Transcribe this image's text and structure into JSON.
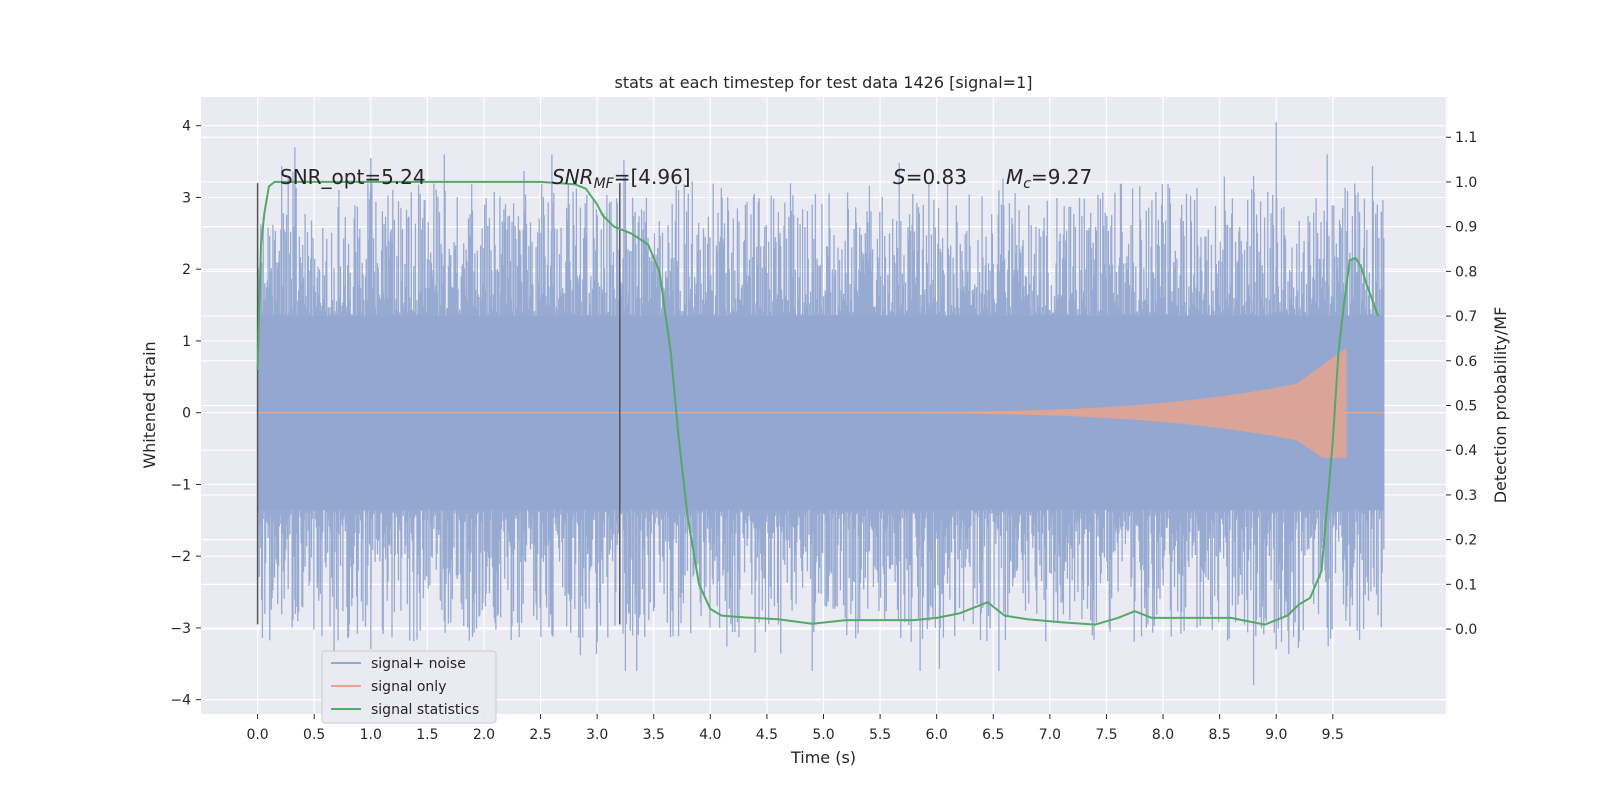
{
  "chart_data": {
    "type": "line",
    "title": "stats at each timestep for test data 1426 [signal=1]",
    "xlabel": "Time (s)",
    "ylabel": "Whitened strain",
    "y2label": "Detection probability/MF",
    "xlim": [
      -0.5,
      10.5
    ],
    "ylim": [
      -4.2,
      4.4
    ],
    "y2lim": [
      -0.19,
      1.19
    ],
    "x_ticks": [
      "0.0",
      "0.5",
      "1.0",
      "1.5",
      "2.0",
      "2.5",
      "3.0",
      "3.5",
      "4.0",
      "4.5",
      "5.0",
      "5.5",
      "6.0",
      "6.5",
      "7.0",
      "7.5",
      "8.0",
      "8.5",
      "9.0",
      "9.5"
    ],
    "y_ticks": [
      "4",
      "3",
      "2",
      "1",
      "0",
      "−1",
      "−2",
      "−3",
      "−4"
    ],
    "y2_ticks": [
      "1.1",
      "1.0",
      "0.9",
      "0.8",
      "0.7",
      "0.6",
      "0.5",
      "0.4",
      "0.3",
      "0.2",
      "0.1",
      "0.0"
    ],
    "grid": true,
    "legend_position": "lower-left",
    "annotations": {
      "snr_opt": "SNR_opt=5.24",
      "snr_mf_main": "SNR",
      "snr_mf_sub": "MF",
      "snr_mf_value": "=[4.96]",
      "s_var": "S",
      "s_value": "=0.83",
      "mc_var": "M",
      "mc_sub": "c",
      "mc_value": "=9.27"
    },
    "vertical_markers": [
      0.0,
      3.2
    ],
    "series": [
      {
        "name": "signal+ noise",
        "color": "#92a6d0",
        "envelope": {
          "core": 1.35,
          "typical_peak": 2.4,
          "max_peak": 4.05,
          "min_peak": -3.8
        },
        "x_range": [
          0.0,
          9.95
        ]
      },
      {
        "name": "signal only",
        "color": "#e6a58e",
        "chirp": {
          "start_amp": 0.0,
          "end_time": 9.62,
          "end_amp": 0.92,
          "merger_amp": 0.9
        },
        "x_range": [
          0.0,
          9.95
        ]
      },
      {
        "name": "signal statistics",
        "color": "#55a868",
        "x": [
          0.0,
          0.03,
          0.06,
          0.1,
          0.15,
          0.3,
          0.6,
          1.0,
          1.5,
          2.0,
          2.5,
          2.8,
          2.9,
          3.0,
          3.05,
          3.15,
          3.3,
          3.45,
          3.55,
          3.65,
          3.72,
          3.8,
          3.9,
          4.0,
          4.1,
          4.3,
          4.6,
          4.9,
          5.2,
          5.5,
          5.8,
          6.0,
          6.2,
          6.35,
          6.45,
          6.6,
          6.8,
          7.1,
          7.4,
          7.6,
          7.75,
          7.9,
          8.2,
          8.6,
          8.9,
          9.1,
          9.2,
          9.3,
          9.4,
          9.5,
          9.55,
          9.6,
          9.65,
          9.7,
          9.75,
          9.8,
          9.9
        ],
        "y": [
          0.58,
          0.86,
          0.93,
          0.99,
          1.0,
          1.0,
          1.0,
          1.0,
          1.0,
          1.0,
          1.0,
          0.995,
          0.985,
          0.95,
          0.925,
          0.9,
          0.885,
          0.86,
          0.8,
          0.62,
          0.43,
          0.25,
          0.1,
          0.045,
          0.03,
          0.026,
          0.022,
          0.012,
          0.02,
          0.02,
          0.02,
          0.025,
          0.035,
          0.05,
          0.06,
          0.03,
          0.022,
          0.015,
          0.01,
          0.025,
          0.04,
          0.025,
          0.025,
          0.025,
          0.01,
          0.03,
          0.055,
          0.07,
          0.13,
          0.42,
          0.62,
          0.73,
          0.825,
          0.83,
          0.81,
          0.77,
          0.7
        ]
      }
    ]
  }
}
